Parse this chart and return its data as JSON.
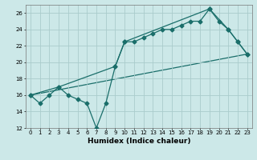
{
  "xlabel": "Humidex (Indice chaleur)",
  "ylabel": "",
  "bg_color": "#cce8e8",
  "grid_color": "#aacccc",
  "line_color": "#1a6e6a",
  "xmin": -0.5,
  "xmax": 23.5,
  "ymin": 12,
  "ymax": 27,
  "yticks": [
    12,
    14,
    16,
    18,
    20,
    22,
    24,
    26
  ],
  "xticks": [
    0,
    1,
    2,
    3,
    4,
    5,
    6,
    7,
    8,
    9,
    10,
    11,
    12,
    13,
    14,
    15,
    16,
    17,
    18,
    19,
    20,
    21,
    22,
    23
  ],
  "series1_x": [
    0,
    1,
    2,
    3,
    4,
    5,
    6,
    7,
    8,
    9,
    10,
    11,
    12,
    13,
    14,
    15,
    16,
    17,
    18,
    19,
    20,
    21,
    22,
    23
  ],
  "series1_y": [
    16,
    15,
    16,
    17,
    16,
    15.5,
    15,
    12,
    15,
    19.5,
    22.5,
    22.5,
    23,
    23.5,
    24,
    24,
    24.5,
    25,
    25,
    26.5,
    25,
    24,
    22.5,
    21
  ],
  "series2_x": [
    0,
    3,
    9,
    10,
    19,
    21,
    22,
    23
  ],
  "series2_y": [
    16,
    17,
    19.5,
    22.5,
    26.5,
    24,
    22.5,
    21
  ],
  "series3_x": [
    0,
    23
  ],
  "series3_y": [
    16,
    21
  ],
  "marker_size": 2.5,
  "linewidth": 0.9,
  "tick_fontsize": 5.0,
  "xlabel_fontsize": 6.5
}
